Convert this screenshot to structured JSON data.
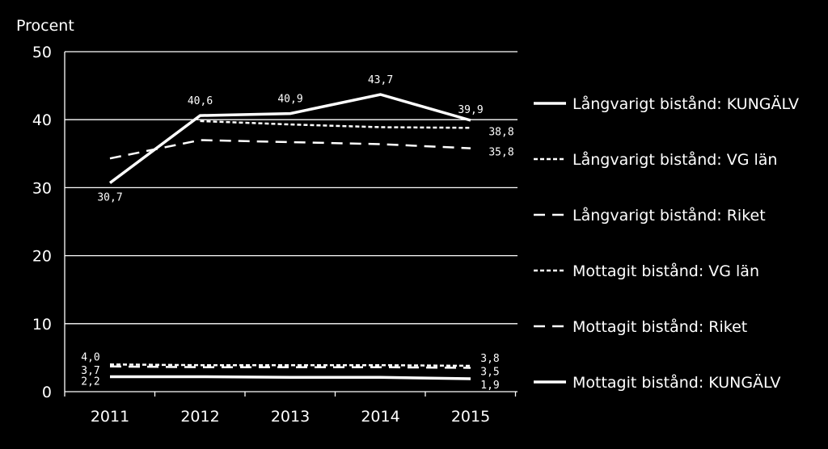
{
  "chart_data": {
    "type": "line",
    "title": "",
    "ylabel": "Procent",
    "xlabel": "",
    "categories": [
      "2011",
      "2012",
      "2013",
      "2014",
      "2015"
    ],
    "ylim": [
      0,
      50
    ],
    "yticks": [
      "0",
      "10",
      "20",
      "30",
      "40",
      "50"
    ],
    "grid": true,
    "legend_position": "right",
    "series": [
      {
        "name": "Långvarigt bistånd: KUNGÄLV",
        "style": "solid",
        "values": [
          30.7,
          40.6,
          40.9,
          43.7,
          39.9
        ],
        "labels": [
          "30,7",
          "40,6",
          "40,9",
          "43,7",
          "39,9"
        ]
      },
      {
        "name": "Långvarigt bistånd: VG län",
        "style": "dotted",
        "values": [
          null,
          39.8,
          39.3,
          38.9,
          38.8
        ],
        "labels": [
          "",
          "",
          "",
          "",
          "38,8"
        ]
      },
      {
        "name": "Långvarigt bistånd: Riket",
        "style": "dashed",
        "values": [
          34.3,
          37.0,
          36.7,
          36.4,
          35.8
        ],
        "labels": [
          "",
          "",
          "",
          "",
          "35,8"
        ]
      },
      {
        "name": "Mottagit bistånd: VG län",
        "style": "dotted",
        "values": [
          4.0,
          3.9,
          3.9,
          3.9,
          3.8
        ],
        "labels": [
          "4,0",
          "",
          "",
          "",
          "3,8"
        ]
      },
      {
        "name": "Mottagit bistånd: Riket",
        "style": "dashed",
        "values": [
          3.7,
          3.6,
          3.6,
          3.6,
          3.5
        ],
        "labels": [
          "3,7",
          "",
          "",
          "",
          "3,5"
        ]
      },
      {
        "name": "Mottagit bistånd: KUNGÄLV",
        "style": "solid",
        "values": [
          2.2,
          2.2,
          2.1,
          2.1,
          1.9
        ],
        "labels": [
          "2,2",
          "",
          "",
          "",
          "1,9"
        ]
      }
    ],
    "colors": {
      "background": "#000000",
      "lines": "#ffffff",
      "text": "#ffffff"
    }
  }
}
